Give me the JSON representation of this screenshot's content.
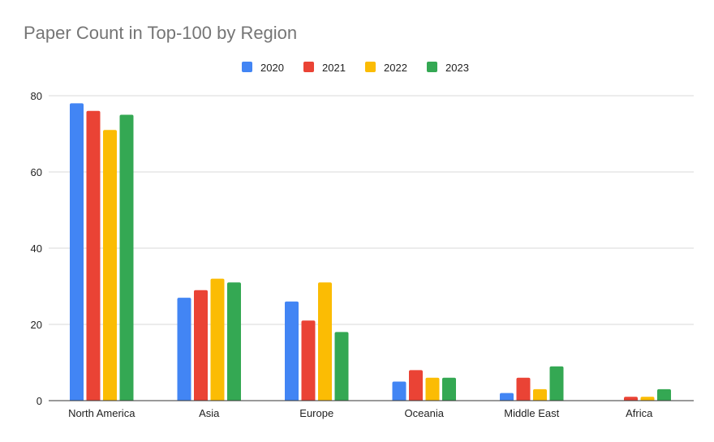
{
  "chart_data": {
    "type": "bar",
    "title": "Paper Count in Top-100 by Region",
    "xlabel": "",
    "ylabel": "",
    "categories": [
      "North America",
      "Asia",
      "Europe",
      "Oceania",
      "Middle East",
      "Africa"
    ],
    "series": [
      {
        "name": "2020",
        "color": "#4285F4",
        "values": [
          78,
          27,
          26,
          5,
          2,
          0
        ]
      },
      {
        "name": "2021",
        "color": "#EA4335",
        "values": [
          76,
          29,
          21,
          8,
          6,
          1
        ]
      },
      {
        "name": "2022",
        "color": "#FBBC04",
        "values": [
          71,
          32,
          31,
          6,
          3,
          1
        ]
      },
      {
        "name": "2023",
        "color": "#34A853",
        "values": [
          75,
          31,
          18,
          6,
          9,
          3
        ]
      }
    ],
    "ylim": [
      0,
      80
    ],
    "yticks": [
      0,
      20,
      40,
      60,
      80
    ],
    "grid": true,
    "legend_position": "top"
  }
}
